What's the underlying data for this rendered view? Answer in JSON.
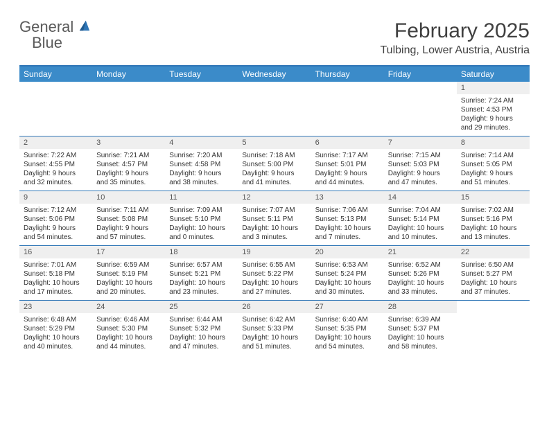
{
  "logo": {
    "word1": "General",
    "word2": "Blue"
  },
  "title": "February 2025",
  "location": "Tulbing, Lower Austria, Austria",
  "colors": {
    "header_bar": "#3b8bc9",
    "accent_line": "#2e75b6",
    "daynum_bg": "#efefef",
    "text": "#333333",
    "title_text": "#404040",
    "logo_gray": "#5a5a5a"
  },
  "day_headers": [
    "Sunday",
    "Monday",
    "Tuesday",
    "Wednesday",
    "Thursday",
    "Friday",
    "Saturday"
  ],
  "weeks": [
    [
      {
        "n": "",
        "empty": true
      },
      {
        "n": "",
        "empty": true
      },
      {
        "n": "",
        "empty": true
      },
      {
        "n": "",
        "empty": true
      },
      {
        "n": "",
        "empty": true
      },
      {
        "n": "",
        "empty": true
      },
      {
        "n": "1",
        "sunrise": "Sunrise: 7:24 AM",
        "sunset": "Sunset: 4:53 PM",
        "daylight": "Daylight: 9 hours and 29 minutes."
      }
    ],
    [
      {
        "n": "2",
        "sunrise": "Sunrise: 7:22 AM",
        "sunset": "Sunset: 4:55 PM",
        "daylight": "Daylight: 9 hours and 32 minutes."
      },
      {
        "n": "3",
        "sunrise": "Sunrise: 7:21 AM",
        "sunset": "Sunset: 4:57 PM",
        "daylight": "Daylight: 9 hours and 35 minutes."
      },
      {
        "n": "4",
        "sunrise": "Sunrise: 7:20 AM",
        "sunset": "Sunset: 4:58 PM",
        "daylight": "Daylight: 9 hours and 38 minutes."
      },
      {
        "n": "5",
        "sunrise": "Sunrise: 7:18 AM",
        "sunset": "Sunset: 5:00 PM",
        "daylight": "Daylight: 9 hours and 41 minutes."
      },
      {
        "n": "6",
        "sunrise": "Sunrise: 7:17 AM",
        "sunset": "Sunset: 5:01 PM",
        "daylight": "Daylight: 9 hours and 44 minutes."
      },
      {
        "n": "7",
        "sunrise": "Sunrise: 7:15 AM",
        "sunset": "Sunset: 5:03 PM",
        "daylight": "Daylight: 9 hours and 47 minutes."
      },
      {
        "n": "8",
        "sunrise": "Sunrise: 7:14 AM",
        "sunset": "Sunset: 5:05 PM",
        "daylight": "Daylight: 9 hours and 51 minutes."
      }
    ],
    [
      {
        "n": "9",
        "sunrise": "Sunrise: 7:12 AM",
        "sunset": "Sunset: 5:06 PM",
        "daylight": "Daylight: 9 hours and 54 minutes."
      },
      {
        "n": "10",
        "sunrise": "Sunrise: 7:11 AM",
        "sunset": "Sunset: 5:08 PM",
        "daylight": "Daylight: 9 hours and 57 minutes."
      },
      {
        "n": "11",
        "sunrise": "Sunrise: 7:09 AM",
        "sunset": "Sunset: 5:10 PM",
        "daylight": "Daylight: 10 hours and 0 minutes."
      },
      {
        "n": "12",
        "sunrise": "Sunrise: 7:07 AM",
        "sunset": "Sunset: 5:11 PM",
        "daylight": "Daylight: 10 hours and 3 minutes."
      },
      {
        "n": "13",
        "sunrise": "Sunrise: 7:06 AM",
        "sunset": "Sunset: 5:13 PM",
        "daylight": "Daylight: 10 hours and 7 minutes."
      },
      {
        "n": "14",
        "sunrise": "Sunrise: 7:04 AM",
        "sunset": "Sunset: 5:14 PM",
        "daylight": "Daylight: 10 hours and 10 minutes."
      },
      {
        "n": "15",
        "sunrise": "Sunrise: 7:02 AM",
        "sunset": "Sunset: 5:16 PM",
        "daylight": "Daylight: 10 hours and 13 minutes."
      }
    ],
    [
      {
        "n": "16",
        "sunrise": "Sunrise: 7:01 AM",
        "sunset": "Sunset: 5:18 PM",
        "daylight": "Daylight: 10 hours and 17 minutes."
      },
      {
        "n": "17",
        "sunrise": "Sunrise: 6:59 AM",
        "sunset": "Sunset: 5:19 PM",
        "daylight": "Daylight: 10 hours and 20 minutes."
      },
      {
        "n": "18",
        "sunrise": "Sunrise: 6:57 AM",
        "sunset": "Sunset: 5:21 PM",
        "daylight": "Daylight: 10 hours and 23 minutes."
      },
      {
        "n": "19",
        "sunrise": "Sunrise: 6:55 AM",
        "sunset": "Sunset: 5:22 PM",
        "daylight": "Daylight: 10 hours and 27 minutes."
      },
      {
        "n": "20",
        "sunrise": "Sunrise: 6:53 AM",
        "sunset": "Sunset: 5:24 PM",
        "daylight": "Daylight: 10 hours and 30 minutes."
      },
      {
        "n": "21",
        "sunrise": "Sunrise: 6:52 AM",
        "sunset": "Sunset: 5:26 PM",
        "daylight": "Daylight: 10 hours and 33 minutes."
      },
      {
        "n": "22",
        "sunrise": "Sunrise: 6:50 AM",
        "sunset": "Sunset: 5:27 PM",
        "daylight": "Daylight: 10 hours and 37 minutes."
      }
    ],
    [
      {
        "n": "23",
        "sunrise": "Sunrise: 6:48 AM",
        "sunset": "Sunset: 5:29 PM",
        "daylight": "Daylight: 10 hours and 40 minutes."
      },
      {
        "n": "24",
        "sunrise": "Sunrise: 6:46 AM",
        "sunset": "Sunset: 5:30 PM",
        "daylight": "Daylight: 10 hours and 44 minutes."
      },
      {
        "n": "25",
        "sunrise": "Sunrise: 6:44 AM",
        "sunset": "Sunset: 5:32 PM",
        "daylight": "Daylight: 10 hours and 47 minutes."
      },
      {
        "n": "26",
        "sunrise": "Sunrise: 6:42 AM",
        "sunset": "Sunset: 5:33 PM",
        "daylight": "Daylight: 10 hours and 51 minutes."
      },
      {
        "n": "27",
        "sunrise": "Sunrise: 6:40 AM",
        "sunset": "Sunset: 5:35 PM",
        "daylight": "Daylight: 10 hours and 54 minutes."
      },
      {
        "n": "28",
        "sunrise": "Sunrise: 6:39 AM",
        "sunset": "Sunset: 5:37 PM",
        "daylight": "Daylight: 10 hours and 58 minutes."
      },
      {
        "n": "",
        "empty": true
      }
    ]
  ]
}
